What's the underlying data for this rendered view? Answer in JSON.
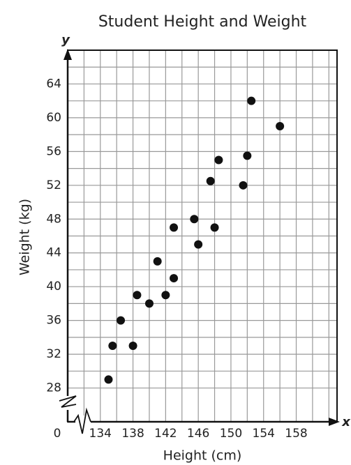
{
  "chart_data": {
    "type": "scatter",
    "title": "Student Height and Weight",
    "x_label": "Height (cm)",
    "y_label": "Weight (kg)",
    "x_axis_letter": "x",
    "y_axis_letter": "y",
    "origin_label": "0",
    "xlim": [
      130,
      163
    ],
    "ylim": [
      24,
      68
    ],
    "xticks": [
      134,
      138,
      142,
      146,
      150,
      154,
      158
    ],
    "yticks": [
      28,
      32,
      36,
      40,
      44,
      48,
      52,
      56,
      60,
      64
    ],
    "x_grid": [
      132,
      134,
      136,
      138,
      140,
      142,
      144,
      146,
      148,
      150,
      152,
      154,
      156,
      158,
      160,
      162
    ],
    "y_grid": [
      28,
      30,
      32,
      34,
      36,
      38,
      40,
      42,
      44,
      46,
      48,
      50,
      52,
      54,
      56,
      58,
      60,
      62,
      64,
      66
    ],
    "grid": true,
    "color": "#111111",
    "x": [
      135,
      135.5,
      136.5,
      138,
      138.5,
      140,
      141,
      142,
      143,
      143,
      145.5,
      146,
      147.5,
      148,
      148.5,
      151.5,
      152,
      152.5,
      156
    ],
    "y": [
      29,
      33,
      36,
      33,
      39,
      38,
      43,
      39,
      47,
      41,
      48,
      45,
      52.5,
      47,
      55,
      52,
      55.5,
      62,
      59
    ]
  }
}
